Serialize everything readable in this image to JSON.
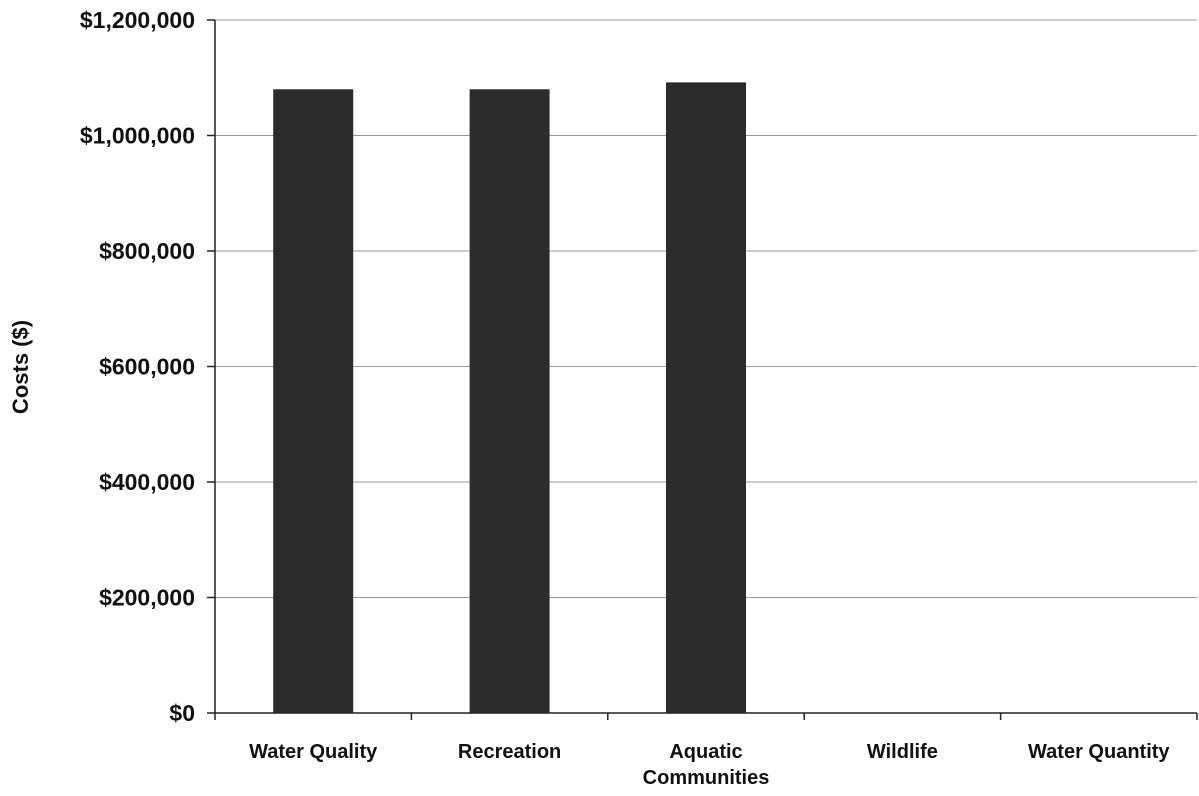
{
  "chart_data": {
    "type": "bar",
    "title": "",
    "xlabel": "",
    "ylabel": "Costs ($)",
    "categories": [
      [
        "Water Quality"
      ],
      [
        "Recreation"
      ],
      [
        "Aquatic",
        "Communities"
      ],
      [
        "Wildlife"
      ],
      [
        "Water Quantity"
      ]
    ],
    "values": [
      1080000,
      1080000,
      1092000,
      0,
      0
    ],
    "ylim": [
      0,
      1200000
    ],
    "yticks": [
      0,
      200000,
      400000,
      600000,
      800000,
      1000000,
      1200000
    ],
    "ytick_labels": [
      "$0",
      "$200,000",
      "$400,000",
      "$600,000",
      "$800,000",
      "$1,000,000",
      "$1,200,000"
    ],
    "grid": true,
    "legend": "none",
    "colors": {
      "bar": "#2b2b2b",
      "grid": "#9a9a9a",
      "axis": "#222222"
    }
  }
}
